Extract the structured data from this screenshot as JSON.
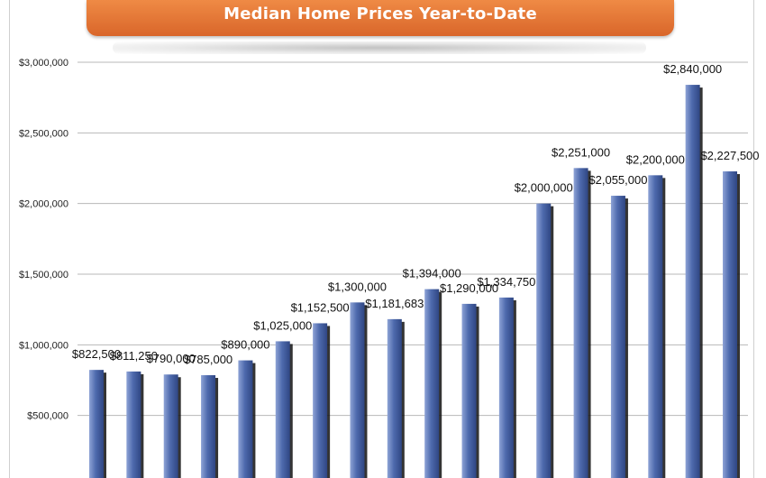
{
  "chart_data": {
    "type": "bar",
    "title": "Median Home Prices Year-to-Date",
    "categories": [
      "",
      "",
      "",
      "",
      "",
      "",
      "",
      "",
      "",
      "",
      "",
      "",
      "",
      "",
      "",
      "",
      "",
      ""
    ],
    "values": [
      822500,
      811250,
      790000,
      785000,
      890000,
      1025000,
      1152500,
      1300000,
      1181683,
      1394000,
      1290000,
      1334750,
      2000000,
      2251000,
      2055000,
      2200000,
      2840000,
      2227500
    ],
    "value_labels": [
      "$822,500",
      "$811,250",
      "$790,000",
      "$785,000",
      "$890,000",
      "$1,025,000",
      "$1,152,500",
      "$1,300,000",
      "$1,181,683",
      "$1,394,000",
      "$1,290,000",
      "$1,334,750",
      "$2,000,000",
      "$2,251,000",
      "$2,055,000",
      "$2,200,000",
      "$2,840,000",
      "$2,227,500"
    ],
    "y_ticks": [
      {
        "value": 500000,
        "label": "$500,000"
      },
      {
        "value": 1000000,
        "label": "$1,000,000"
      },
      {
        "value": 1500000,
        "label": "$1,500,000"
      },
      {
        "value": 2000000,
        "label": "$2,000,000"
      },
      {
        "value": 2500000,
        "label": "$2,500,000"
      },
      {
        "value": 3000000,
        "label": "$3,000,000"
      }
    ],
    "ylim": [
      0,
      3000000
    ],
    "grid": true,
    "colors": {
      "bar": "#4e6aad",
      "bar_light": "#8ea3d6",
      "bar_dark": "#2f4683",
      "shadow": "#111111",
      "grid": "#b8b8b8",
      "banner": "#e57a36"
    }
  }
}
